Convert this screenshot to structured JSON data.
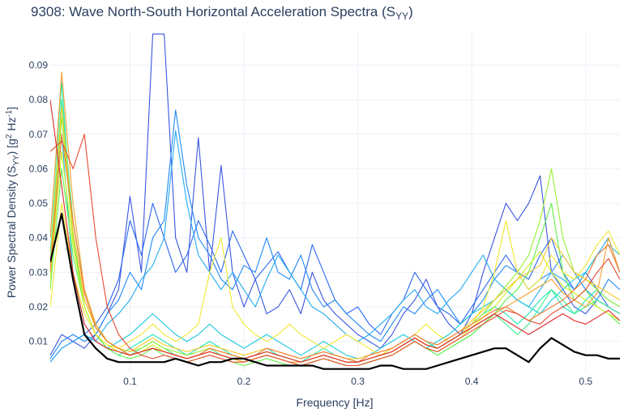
{
  "chart_data": {
    "type": "line",
    "title": "9308: Wave North-South Horizontal Acceleration Spectra (S",
    "title_sub": "YY",
    "title_close": ")",
    "xlabel": "Frequency [Hz]",
    "ylabel_main": "Power Spectral Density (S",
    "ylabel_sub": "YY",
    "ylabel_mid": ") [g",
    "ylabel_sup1": "2",
    "ylabel_hz": " Hz",
    "ylabel_sup2": "-1",
    "ylabel_close": "]",
    "xlim": [
      0.03,
      0.53
    ],
    "ylim": [
      0.001,
      0.0995
    ],
    "xticks": [
      {
        "value": 0.1,
        "label": "0.1"
      },
      {
        "value": 0.2,
        "label": "0.2"
      },
      {
        "value": 0.3,
        "label": "0.3"
      },
      {
        "value": 0.4,
        "label": "0.4"
      },
      {
        "value": 0.5,
        "label": "0.5"
      }
    ],
    "yticks": [
      {
        "value": 0.01,
        "label": "0.01"
      },
      {
        "value": 0.02,
        "label": "0.02"
      },
      {
        "value": 0.03,
        "label": "0.03"
      },
      {
        "value": 0.04,
        "label": "0.04"
      },
      {
        "value": 0.05,
        "label": "0.05"
      },
      {
        "value": 0.06,
        "label": "0.06"
      },
      {
        "value": 0.07,
        "label": "0.07"
      },
      {
        "value": 0.08,
        "label": "0.08"
      },
      {
        "value": 0.09,
        "label": "0.09"
      }
    ],
    "grid": true,
    "legend": "none",
    "x": [
      0.03,
      0.04,
      0.05,
      0.06,
      0.07,
      0.08,
      0.09,
      0.1,
      0.11,
      0.12,
      0.13,
      0.14,
      0.15,
      0.16,
      0.17,
      0.18,
      0.19,
      0.2,
      0.21,
      0.22,
      0.23,
      0.24,
      0.25,
      0.26,
      0.27,
      0.28,
      0.29,
      0.3,
      0.31,
      0.32,
      0.33,
      0.34,
      0.35,
      0.36,
      0.37,
      0.38,
      0.39,
      0.4,
      0.41,
      0.42,
      0.43,
      0.44,
      0.45,
      0.46,
      0.47,
      0.48,
      0.49,
      0.5,
      0.51,
      0.52,
      0.53
    ],
    "series": [
      {
        "color": "#3a55e0",
        "values": [
          0.006,
          0.012,
          0.01,
          0.008,
          0.012,
          0.018,
          0.025,
          0.052,
          0.03,
          0.099,
          0.099,
          0.04,
          0.03,
          0.069,
          0.03,
          0.061,
          0.03,
          0.02,
          0.028,
          0.018,
          0.02,
          0.025,
          0.018,
          0.03,
          0.022,
          0.018,
          0.015,
          0.012,
          0.01,
          0.008,
          0.012,
          0.018,
          0.022,
          0.028,
          0.02,
          0.015,
          0.012,
          0.018,
          0.03,
          0.04,
          0.05,
          0.045,
          0.05,
          0.058,
          0.03,
          0.025,
          0.02,
          0.018,
          0.022,
          0.02,
          0.018
        ]
      },
      {
        "color": "#2a66f0",
        "values": [
          0.004,
          0.008,
          0.01,
          0.012,
          0.015,
          0.02,
          0.028,
          0.045,
          0.035,
          0.05,
          0.04,
          0.03,
          0.035,
          0.045,
          0.038,
          0.03,
          0.042,
          0.035,
          0.028,
          0.032,
          0.036,
          0.03,
          0.025,
          0.038,
          0.03,
          0.022,
          0.018,
          0.02,
          0.015,
          0.012,
          0.018,
          0.022,
          0.03,
          0.025,
          0.02,
          0.018,
          0.015,
          0.02,
          0.025,
          0.03,
          0.035,
          0.03,
          0.028,
          0.035,
          0.04,
          0.03,
          0.025,
          0.03,
          0.025,
          0.02,
          0.018
        ]
      },
      {
        "color": "#1f88f5",
        "values": [
          0.005,
          0.01,
          0.012,
          0.01,
          0.012,
          0.018,
          0.022,
          0.03,
          0.025,
          0.04,
          0.045,
          0.077,
          0.055,
          0.04,
          0.035,
          0.028,
          0.025,
          0.032,
          0.03,
          0.04,
          0.03,
          0.028,
          0.035,
          0.025,
          0.02,
          0.022,
          0.018,
          0.015,
          0.012,
          0.01,
          0.015,
          0.02,
          0.018,
          0.022,
          0.025,
          0.02,
          0.015,
          0.018,
          0.022,
          0.028,
          0.032,
          0.03,
          0.025,
          0.028,
          0.03,
          0.035,
          0.03,
          0.025,
          0.022,
          0.028,
          0.025
        ]
      },
      {
        "color": "#22aaf0",
        "values": [
          0.004,
          0.008,
          0.01,
          0.012,
          0.01,
          0.015,
          0.018,
          0.022,
          0.028,
          0.032,
          0.04,
          0.071,
          0.05,
          0.035,
          0.03,
          0.025,
          0.03,
          0.025,
          0.02,
          0.028,
          0.035,
          0.03,
          0.025,
          0.02,
          0.018,
          0.015,
          0.012,
          0.01,
          0.012,
          0.015,
          0.018,
          0.022,
          0.025,
          0.02,
          0.018,
          0.022,
          0.025,
          0.03,
          0.035,
          0.028,
          0.025,
          0.022,
          0.02,
          0.025,
          0.03,
          0.028,
          0.025,
          0.03,
          0.035,
          0.04,
          0.03
        ]
      },
      {
        "color": "#18c8e0",
        "values": [
          0.03,
          0.07,
          0.03,
          0.015,
          0.01,
          0.008,
          0.01,
          0.012,
          0.015,
          0.018,
          0.015,
          0.012,
          0.01,
          0.012,
          0.015,
          0.012,
          0.01,
          0.008,
          0.01,
          0.012,
          0.01,
          0.008,
          0.006,
          0.008,
          0.01,
          0.008,
          0.006,
          0.005,
          0.006,
          0.008,
          0.01,
          0.012,
          0.01,
          0.008,
          0.01,
          0.012,
          0.015,
          0.018,
          0.02,
          0.022,
          0.025,
          0.022,
          0.02,
          0.018,
          0.022,
          0.025,
          0.028,
          0.03,
          0.035,
          0.038,
          0.035
        ]
      },
      {
        "color": "#20e8b8",
        "values": [
          0.04,
          0.085,
          0.04,
          0.02,
          0.012,
          0.008,
          0.006,
          0.008,
          0.01,
          0.012,
          0.01,
          0.008,
          0.006,
          0.008,
          0.01,
          0.008,
          0.006,
          0.005,
          0.006,
          0.008,
          0.006,
          0.005,
          0.004,
          0.006,
          0.008,
          0.006,
          0.005,
          0.004,
          0.005,
          0.006,
          0.008,
          0.01,
          0.012,
          0.01,
          0.008,
          0.01,
          0.012,
          0.015,
          0.018,
          0.02,
          0.018,
          0.015,
          0.018,
          0.022,
          0.025,
          0.02,
          0.018,
          0.022,
          0.025,
          0.022,
          0.02
        ]
      },
      {
        "color": "#40f090",
        "values": [
          0.035,
          0.08,
          0.045,
          0.025,
          0.015,
          0.01,
          0.008,
          0.006,
          0.008,
          0.01,
          0.008,
          0.006,
          0.005,
          0.006,
          0.008,
          0.006,
          0.005,
          0.004,
          0.005,
          0.006,
          0.005,
          0.004,
          0.003,
          0.004,
          0.005,
          0.004,
          0.003,
          0.003,
          0.004,
          0.005,
          0.006,
          0.008,
          0.01,
          0.008,
          0.006,
          0.008,
          0.01,
          0.012,
          0.015,
          0.018,
          0.015,
          0.012,
          0.015,
          0.02,
          0.025,
          0.022,
          0.018,
          0.02,
          0.022,
          0.02,
          0.018
        ]
      },
      {
        "color": "#60f048",
        "values": [
          0.025,
          0.06,
          0.035,
          0.02,
          0.012,
          0.008,
          0.006,
          0.005,
          0.006,
          0.008,
          0.006,
          0.005,
          0.004,
          0.005,
          0.006,
          0.005,
          0.004,
          0.003,
          0.004,
          0.005,
          0.004,
          0.003,
          0.003,
          0.004,
          0.005,
          0.004,
          0.003,
          0.003,
          0.004,
          0.005,
          0.006,
          0.008,
          0.01,
          0.008,
          0.006,
          0.008,
          0.01,
          0.012,
          0.015,
          0.018,
          0.022,
          0.025,
          0.03,
          0.04,
          0.05,
          0.03,
          0.022,
          0.025,
          0.02,
          0.018,
          0.015
        ]
      },
      {
        "color": "#98f030",
        "values": [
          0.03,
          0.075,
          0.04,
          0.022,
          0.014,
          0.01,
          0.008,
          0.007,
          0.008,
          0.01,
          0.008,
          0.007,
          0.006,
          0.007,
          0.008,
          0.007,
          0.006,
          0.005,
          0.006,
          0.007,
          0.006,
          0.005,
          0.004,
          0.005,
          0.006,
          0.005,
          0.004,
          0.004,
          0.005,
          0.006,
          0.007,
          0.009,
          0.011,
          0.009,
          0.008,
          0.01,
          0.012,
          0.015,
          0.018,
          0.022,
          0.026,
          0.03,
          0.035,
          0.045,
          0.06,
          0.04,
          0.03,
          0.028,
          0.025,
          0.022,
          0.02
        ]
      },
      {
        "color": "#d0f020",
        "values": [
          0.028,
          0.065,
          0.038,
          0.02,
          0.012,
          0.009,
          0.007,
          0.006,
          0.007,
          0.009,
          0.007,
          0.006,
          0.005,
          0.006,
          0.007,
          0.006,
          0.005,
          0.004,
          0.005,
          0.006,
          0.005,
          0.004,
          0.003,
          0.004,
          0.005,
          0.004,
          0.003,
          0.003,
          0.004,
          0.005,
          0.006,
          0.008,
          0.01,
          0.008,
          0.007,
          0.009,
          0.011,
          0.014,
          0.017,
          0.02,
          0.024,
          0.028,
          0.032,
          0.036,
          0.03,
          0.026,
          0.024,
          0.022,
          0.02,
          0.018,
          0.016
        ]
      },
      {
        "color": "#f0e830",
        "values": [
          0.02,
          0.05,
          0.03,
          0.018,
          0.012,
          0.009,
          0.008,
          0.01,
          0.012,
          0.015,
          0.012,
          0.01,
          0.012,
          0.015,
          0.03,
          0.04,
          0.02,
          0.015,
          0.012,
          0.01,
          0.012,
          0.015,
          0.012,
          0.01,
          0.008,
          0.01,
          0.012,
          0.01,
          0.008,
          0.006,
          0.008,
          0.01,
          0.012,
          0.015,
          0.012,
          0.01,
          0.012,
          0.015,
          0.02,
          0.03,
          0.045,
          0.03,
          0.025,
          0.028,
          0.035,
          0.03,
          0.028,
          0.032,
          0.038,
          0.042,
          0.035
        ]
      },
      {
        "color": "#f8c828",
        "values": [
          0.032,
          0.078,
          0.042,
          0.022,
          0.014,
          0.01,
          0.008,
          0.007,
          0.009,
          0.011,
          0.009,
          0.008,
          0.007,
          0.008,
          0.009,
          0.008,
          0.007,
          0.006,
          0.007,
          0.008,
          0.007,
          0.006,
          0.005,
          0.006,
          0.007,
          0.006,
          0.005,
          0.005,
          0.006,
          0.007,
          0.008,
          0.01,
          0.012,
          0.01,
          0.009,
          0.011,
          0.013,
          0.016,
          0.019,
          0.022,
          0.025,
          0.028,
          0.03,
          0.032,
          0.04,
          0.035,
          0.03,
          0.028,
          0.026,
          0.024,
          0.022
        ]
      },
      {
        "color": "#f8a030",
        "values": [
          0.04,
          0.088,
          0.05,
          0.025,
          0.015,
          0.01,
          0.008,
          0.006,
          0.007,
          0.008,
          0.007,
          0.006,
          0.005,
          0.006,
          0.007,
          0.006,
          0.005,
          0.004,
          0.005,
          0.006,
          0.005,
          0.004,
          0.004,
          0.005,
          0.006,
          0.005,
          0.004,
          0.004,
          0.005,
          0.006,
          0.007,
          0.009,
          0.011,
          0.009,
          0.008,
          0.01,
          0.012,
          0.014,
          0.016,
          0.018,
          0.02,
          0.022,
          0.024,
          0.026,
          0.028,
          0.024,
          0.022,
          0.02,
          0.024,
          0.04,
          0.03
        ]
      },
      {
        "color": "#f87830",
        "values": [
          0.03,
          0.07,
          0.045,
          0.024,
          0.014,
          0.01,
          0.008,
          0.006,
          0.007,
          0.008,
          0.007,
          0.006,
          0.005,
          0.006,
          0.008,
          0.007,
          0.006,
          0.005,
          0.006,
          0.008,
          0.007,
          0.006,
          0.005,
          0.006,
          0.007,
          0.006,
          0.005,
          0.004,
          0.006,
          0.007,
          0.008,
          0.01,
          0.012,
          0.01,
          0.009,
          0.011,
          0.013,
          0.015,
          0.017,
          0.019,
          0.02,
          0.018,
          0.016,
          0.018,
          0.02,
          0.022,
          0.025,
          0.028,
          0.035,
          0.038,
          0.03
        ]
      },
      {
        "color": "#e84a30",
        "values": [
          0.065,
          0.068,
          0.06,
          0.07,
          0.04,
          0.02,
          0.012,
          0.008,
          0.006,
          0.005,
          0.006,
          0.005,
          0.004,
          0.005,
          0.006,
          0.005,
          0.004,
          0.004,
          0.005,
          0.006,
          0.005,
          0.004,
          0.003,
          0.004,
          0.005,
          0.004,
          0.003,
          0.003,
          0.004,
          0.005,
          0.006,
          0.008,
          0.01,
          0.008,
          0.007,
          0.009,
          0.011,
          0.013,
          0.015,
          0.017,
          0.019,
          0.018,
          0.016,
          0.015,
          0.018,
          0.02,
          0.022,
          0.025,
          0.03,
          0.034,
          0.028
        ]
      },
      {
        "color": "#e02828",
        "values": [
          0.08,
          0.055,
          0.03,
          0.015,
          0.01,
          0.008,
          0.007,
          0.006,
          0.007,
          0.008,
          0.007,
          0.006,
          0.005,
          0.006,
          0.007,
          0.006,
          0.005,
          0.005,
          0.006,
          0.007,
          0.006,
          0.005,
          0.004,
          0.005,
          0.006,
          0.005,
          0.004,
          0.004,
          0.005,
          0.006,
          0.007,
          0.009,
          0.011,
          0.009,
          0.008,
          0.01,
          0.012,
          0.014,
          0.016,
          0.018,
          0.016,
          0.014,
          0.012,
          0.014,
          0.016,
          0.018,
          0.016,
          0.015,
          0.017,
          0.019,
          0.016
        ]
      },
      {
        "color": "#000000",
        "width": 2.2,
        "values": [
          0.033,
          0.047,
          0.028,
          0.012,
          0.008,
          0.005,
          0.004,
          0.004,
          0.004,
          0.004,
          0.004,
          0.005,
          0.004,
          0.003,
          0.004,
          0.004,
          0.005,
          0.005,
          0.004,
          0.003,
          0.003,
          0.003,
          0.003,
          0.003,
          0.002,
          0.002,
          0.002,
          0.002,
          0.002,
          0.003,
          0.003,
          0.002,
          0.002,
          0.002,
          0.003,
          0.004,
          0.005,
          0.006,
          0.007,
          0.008,
          0.008,
          0.006,
          0.004,
          0.008,
          0.011,
          0.009,
          0.007,
          0.006,
          0.006,
          0.005,
          0.005
        ]
      }
    ]
  }
}
